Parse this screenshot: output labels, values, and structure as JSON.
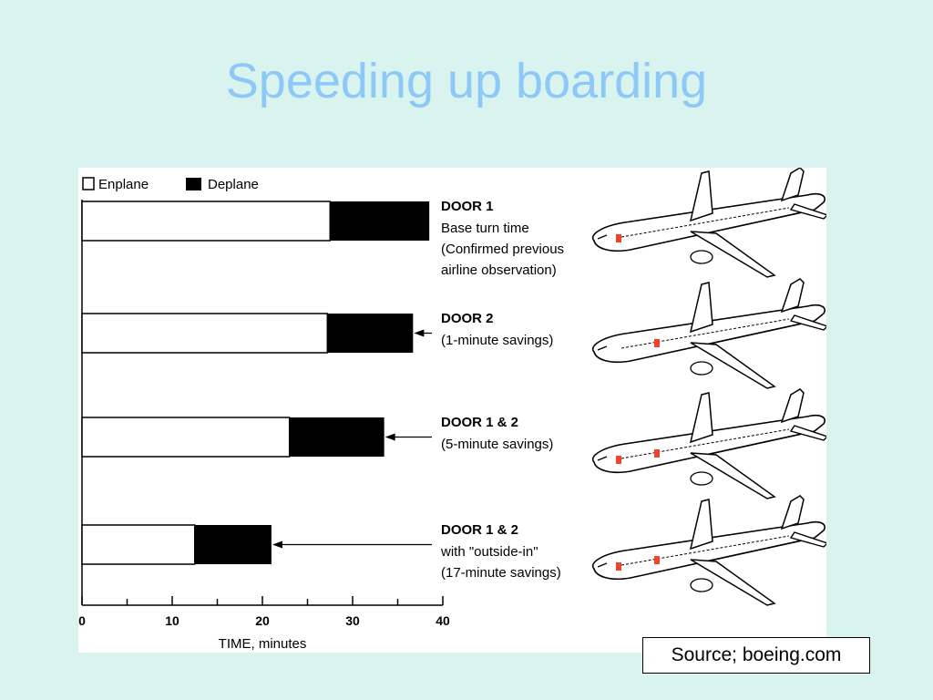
{
  "slide": {
    "title": "Speeding up boarding",
    "source": "Source; boeing.com"
  },
  "colors": {
    "background": "#d9f4ef",
    "title": "#8ec8f7",
    "door_marker": "#f0452c"
  },
  "chart_data": {
    "type": "bar",
    "orientation": "horizontal",
    "stacked": true,
    "xlabel": "TIME, minutes",
    "xlim": [
      0,
      40
    ],
    "xticks": [
      0,
      10,
      20,
      30,
      40
    ],
    "legend": {
      "placement": "top-left",
      "entries": [
        {
          "name": "Enplane",
          "color": "#ffffff"
        },
        {
          "name": "Deplane",
          "color": "#000000"
        }
      ]
    },
    "categories": [
      "DOOR 1",
      "DOOR 2",
      "DOOR 1 & 2",
      "DOOR 1 & 2"
    ],
    "series": [
      {
        "name": "Enplane",
        "values": [
          27.5,
          27.2,
          23.0,
          12.5
        ]
      },
      {
        "name": "Deplane",
        "values": [
          11.0,
          9.5,
          10.5,
          8.5
        ]
      }
    ],
    "bar_labels": [
      {
        "heading": "DOOR 1",
        "lines": [
          "Base turn time",
          "(Confirmed previous",
          "airline observation)"
        ],
        "arrow": false,
        "door_markers": 1
      },
      {
        "heading": "DOOR 2",
        "lines": [
          "(1-minute savings)"
        ],
        "arrow": true,
        "door_markers": 1
      },
      {
        "heading": "DOOR 1 & 2",
        "lines": [
          "(5-minute savings)"
        ],
        "arrow": true,
        "door_markers": 2
      },
      {
        "heading": "DOOR 1 & 2",
        "lines": [
          "with \"outside-in\"",
          "(17-minute savings)"
        ],
        "arrow": true,
        "door_markers": 2
      }
    ]
  }
}
